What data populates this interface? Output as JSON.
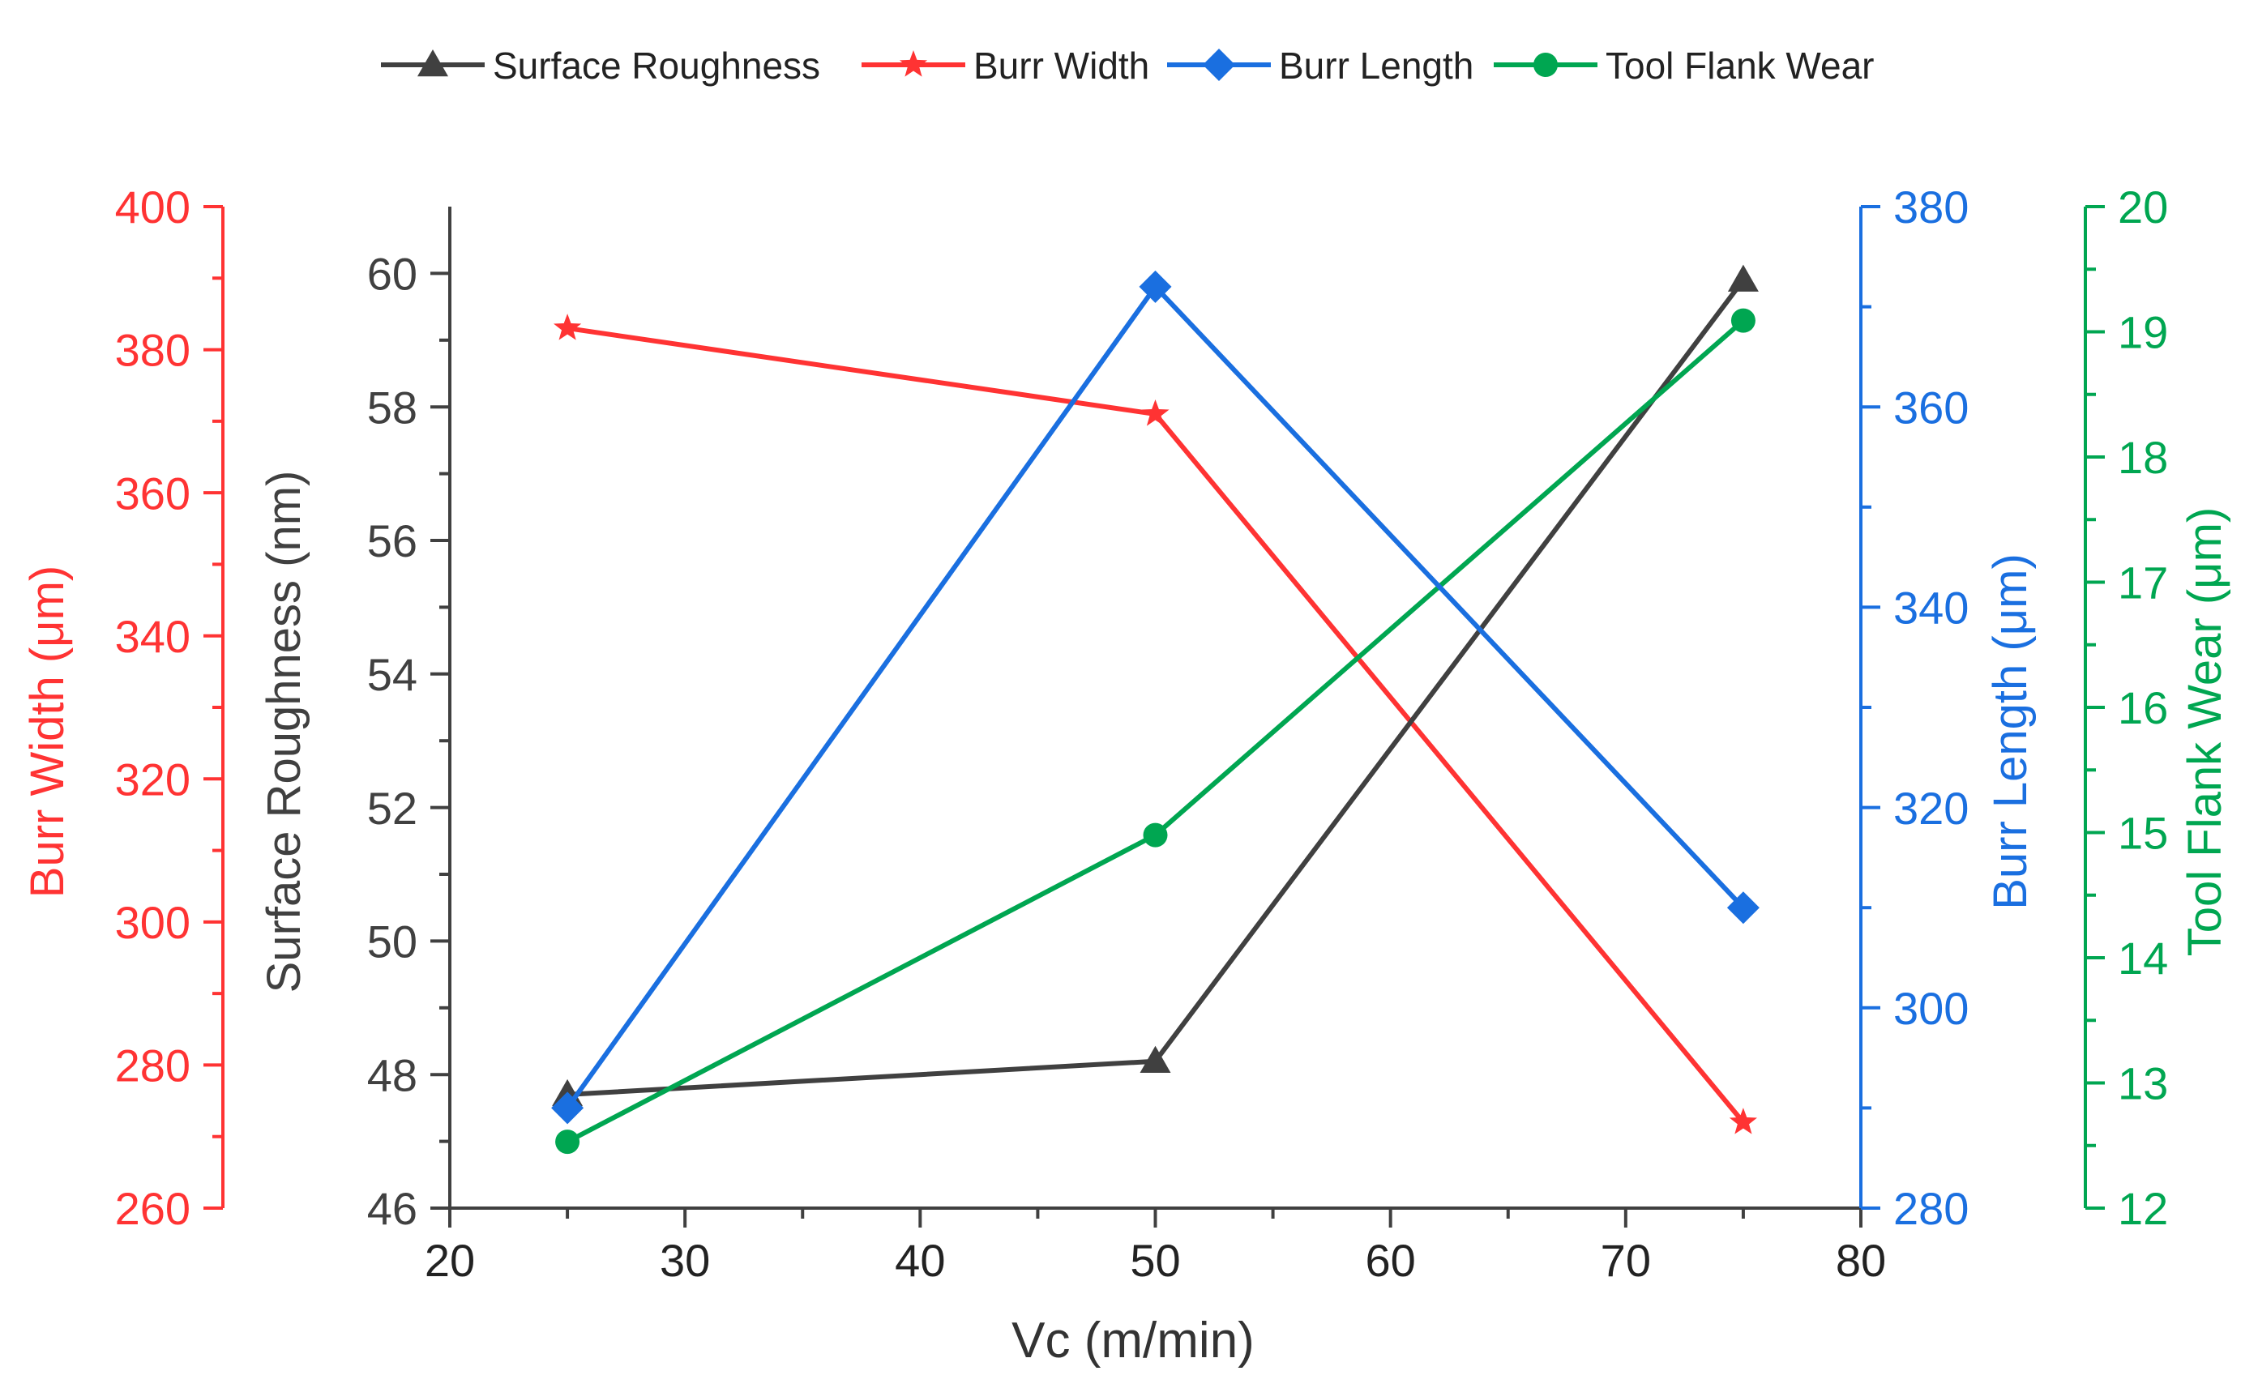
{
  "chart_data": {
    "type": "line",
    "x": [
      25,
      50,
      75
    ],
    "xlabel": "Vc (m/min)",
    "xlim": [
      20,
      80
    ],
    "xticks": [
      20,
      30,
      40,
      50,
      60,
      70,
      80
    ],
    "series": [
      {
        "key": "sr",
        "name": "Surface Roughness",
        "values": [
          47.7,
          48.2,
          59.9
        ],
        "color": "#404040",
        "marker": "triangle",
        "axis": {
          "label": "Surface Roughness (nm)",
          "lim": [
            46,
            61
          ],
          "ticks": [
            46,
            48,
            50,
            52,
            54,
            56,
            58,
            60
          ],
          "side": "left-inner"
        }
      },
      {
        "key": "bw",
        "name": "Burr Width",
        "values": [
          383,
          371,
          272
        ],
        "color": "#ff3333",
        "marker": "star",
        "axis": {
          "label": "Burr Width (μm)",
          "lim": [
            260,
            400
          ],
          "ticks": [
            260,
            280,
            300,
            320,
            340,
            360,
            380,
            400
          ],
          "side": "left-outer"
        }
      },
      {
        "key": "bl",
        "name": "Burr Length",
        "values": [
          290,
          372,
          310
        ],
        "color": "#1a6fe0",
        "marker": "diamond",
        "axis": {
          "label": "Burr Length (μm)",
          "lim": [
            280,
            380
          ],
          "ticks": [
            280,
            300,
            320,
            340,
            360,
            380
          ],
          "side": "right-inner"
        }
      },
      {
        "key": "tfw",
        "name": "Tool Flank Wear",
        "values": [
          12.53,
          14.98,
          19.09
        ],
        "color": "#00a651",
        "marker": "circle",
        "axis": {
          "label": "Tool Flank Wear (μm)",
          "lim": [
            12,
            20
          ],
          "ticks": [
            12,
            13,
            14,
            15,
            16,
            17,
            18,
            19,
            20
          ],
          "side": "right-outer"
        }
      }
    ],
    "legend_position": "top"
  }
}
